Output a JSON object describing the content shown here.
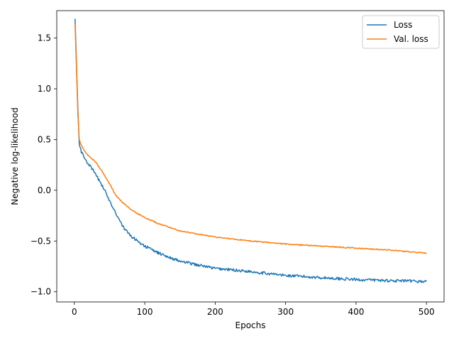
{
  "chart_data": {
    "type": "line",
    "xlabel": "Epochs",
    "ylabel": "Negative log-likelihood",
    "xlim": [
      -25,
      525
    ],
    "ylim": [
      -1.1,
      1.77
    ],
    "xticks": [
      0,
      100,
      200,
      300,
      400,
      500
    ],
    "xtick_labels": [
      "0",
      "100",
      "200",
      "300",
      "400",
      "500"
    ],
    "yticks": [
      -1.0,
      -0.5,
      0.0,
      0.5,
      1.0,
      1.5
    ],
    "ytick_labels": [
      "−1.0",
      "−0.5",
      "0.0",
      "0.5",
      "1.0",
      "1.5"
    ],
    "grid": false,
    "legend_position": "top-right",
    "series": [
      {
        "name": "Loss",
        "color": "#1f77b4",
        "x": [
          1,
          3,
          5,
          7,
          10,
          15,
          20,
          30,
          40,
          50,
          60,
          70,
          80,
          100,
          120,
          150,
          200,
          250,
          300,
          350,
          400,
          450,
          500
        ],
        "y": [
          1.69,
          1.25,
          0.8,
          0.45,
          0.38,
          0.31,
          0.26,
          0.16,
          0.04,
          -0.1,
          -0.24,
          -0.37,
          -0.45,
          -0.55,
          -0.62,
          -0.7,
          -0.77,
          -0.8,
          -0.84,
          -0.86,
          -0.88,
          -0.89,
          -0.9
        ]
      },
      {
        "name": "Val. loss",
        "color": "#ff7f0e",
        "x": [
          1,
          3,
          5,
          7,
          10,
          15,
          20,
          30,
          40,
          50,
          60,
          70,
          80,
          100,
          120,
          150,
          200,
          250,
          300,
          350,
          400,
          450,
          500
        ],
        "y": [
          1.64,
          1.2,
          0.75,
          0.5,
          0.44,
          0.38,
          0.34,
          0.28,
          0.18,
          0.06,
          -0.06,
          -0.13,
          -0.19,
          -0.27,
          -0.33,
          -0.4,
          -0.46,
          -0.5,
          -0.53,
          -0.55,
          -0.57,
          -0.59,
          -0.62
        ]
      }
    ]
  }
}
